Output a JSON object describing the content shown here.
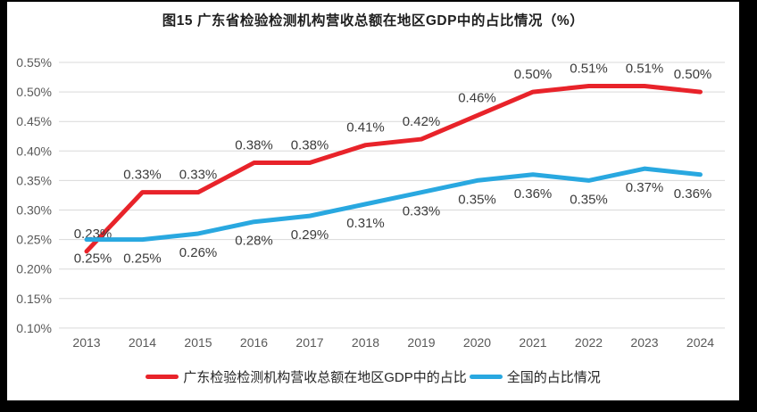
{
  "title": "图15  广东省检验检测机构营收总额在地区GDP中的占比情况（%）",
  "chart_data": {
    "type": "line",
    "title": "图15  广东省检验检测机构营收总额在地区GDP中的占比情况（%）",
    "x": [
      "2013",
      "2014",
      "2015",
      "2016",
      "2017",
      "2018",
      "2019",
      "2020",
      "2021",
      "2022",
      "2023",
      "2024"
    ],
    "xlabel": "",
    "ylabel": "",
    "ylim": [
      0.1,
      0.55
    ],
    "y_ticks": [
      "0.55%",
      "0.50%",
      "0.45%",
      "0.40%",
      "0.35%",
      "0.30%",
      "0.25%",
      "0.20%",
      "0.15%",
      "0.10%"
    ],
    "grid": "horizontal",
    "gridline_color": "#d9d9d9",
    "legend_position": "bottom",
    "series": [
      {
        "name": "广东检验检测机构营收总额在地区GDP中的占比",
        "color": "#e8232a",
        "label_side": "above",
        "values": [
          0.23,
          0.33,
          0.33,
          0.38,
          0.38,
          0.41,
          0.42,
          0.46,
          0.5,
          0.51,
          0.51,
          0.5
        ],
        "labels": [
          "0.23%",
          "0.33%",
          "0.33%",
          "0.38%",
          "0.38%",
          "0.41%",
          "0.42%",
          "0.46%",
          "0.50%",
          "0.51%",
          "0.51%",
          "0.50%"
        ]
      },
      {
        "name": "全国的占比情况",
        "color": "#29a8e0",
        "label_side": "below",
        "values": [
          0.25,
          0.25,
          0.26,
          0.28,
          0.29,
          0.31,
          0.33,
          0.35,
          0.36,
          0.35,
          0.37,
          0.36
        ],
        "labels": [
          "0.25%",
          "0.25%",
          "0.26%",
          "0.28%",
          "0.29%",
          "0.31%",
          "0.33%",
          "0.35%",
          "0.36%",
          "0.35%",
          "0.37%",
          "0.36%"
        ]
      }
    ]
  }
}
